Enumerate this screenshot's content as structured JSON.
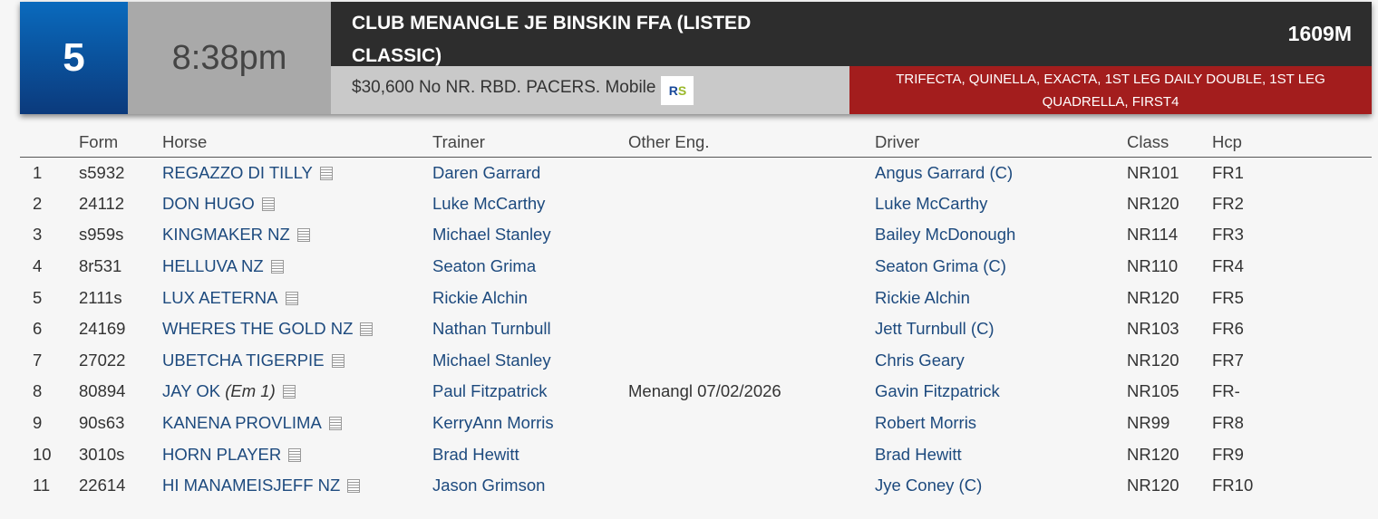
{
  "race": {
    "number": "5",
    "time": "8:38pm",
    "title": "CLUB MENANGLE JE BINSKIN FFA (LISTED CLASSIC)",
    "distance": "1609M",
    "conditions": "$30,600 No NR. RBD. PACERS. Mobile",
    "logo": "RIS",
    "bet_types": "TRIFECTA, QUINELLA, EXACTA, 1ST LEG DAILY DOUBLE, 1ST LEG QUADRELLA, FIRST4"
  },
  "colors": {
    "number_bg": "#0b4f9c",
    "title_bg": "#2d2d2d",
    "bets_bg": "#a31d1d",
    "link": "#1d4a7e"
  },
  "columns": [
    "",
    "Form",
    "Horse",
    "Trainer",
    "Other Eng.",
    "Driver",
    "Class",
    "Hcp"
  ],
  "rows": [
    {
      "no": "1",
      "form": "s5932",
      "horse": "REGAZZO DI TILLY",
      "em": "",
      "trainer": "Daren Garrard",
      "other": "",
      "driver": "Angus Garrard (C)",
      "class": "NR101",
      "hcp": "FR1"
    },
    {
      "no": "2",
      "form": "24112",
      "horse": "DON HUGO",
      "em": "",
      "trainer": "Luke McCarthy",
      "other": "",
      "driver": "Luke McCarthy",
      "class": "NR120",
      "hcp": "FR2"
    },
    {
      "no": "3",
      "form": "s959s",
      "horse": "KINGMAKER NZ",
      "em": "",
      "trainer": "Michael Stanley",
      "other": "",
      "driver": "Bailey McDonough",
      "class": "NR114",
      "hcp": "FR3"
    },
    {
      "no": "4",
      "form": "8r531",
      "horse": "HELLUVA NZ",
      "em": "",
      "trainer": "Seaton Grima",
      "other": "",
      "driver": "Seaton Grima (C)",
      "class": "NR110",
      "hcp": "FR4"
    },
    {
      "no": "5",
      "form": "2111s",
      "horse": "LUX AETERNA",
      "em": "",
      "trainer": "Rickie Alchin",
      "other": "",
      "driver": "Rickie Alchin",
      "class": "NR120",
      "hcp": "FR5"
    },
    {
      "no": "6",
      "form": "24169",
      "horse": "WHERES THE GOLD NZ",
      "em": "",
      "trainer": "Nathan Turnbull",
      "other": "",
      "driver": "Jett Turnbull (C)",
      "class": "NR103",
      "hcp": "FR6"
    },
    {
      "no": "7",
      "form": "27022",
      "horse": "UBETCHA TIGERPIE",
      "em": "",
      "trainer": "Michael Stanley",
      "other": "",
      "driver": "Chris Geary",
      "class": "NR120",
      "hcp": "FR7"
    },
    {
      "no": "8",
      "form": "80894",
      "horse": "JAY OK",
      "em": "(Em 1)",
      "trainer": "Paul Fitzpatrick",
      "other": "Menangl 07/02/2026",
      "driver": "Gavin Fitzpatrick",
      "class": "NR105",
      "hcp": "FR-"
    },
    {
      "no": "9",
      "form": "90s63",
      "horse": "KANENA PROVLIMA",
      "em": "",
      "trainer": "KerryAnn Morris",
      "other": "",
      "driver": "Robert Morris",
      "class": "NR99",
      "hcp": "FR8"
    },
    {
      "no": "10",
      "form": "3010s",
      "horse": "HORN PLAYER",
      "em": "",
      "trainer": "Brad Hewitt",
      "other": "",
      "driver": "Brad Hewitt",
      "class": "NR120",
      "hcp": "FR9"
    },
    {
      "no": "11",
      "form": "22614",
      "horse": "HI MANAMEISJEFF NZ",
      "em": "",
      "trainer": "Jason Grimson",
      "other": "",
      "driver": "Jye Coney (C)",
      "class": "NR120",
      "hcp": "FR10"
    }
  ]
}
